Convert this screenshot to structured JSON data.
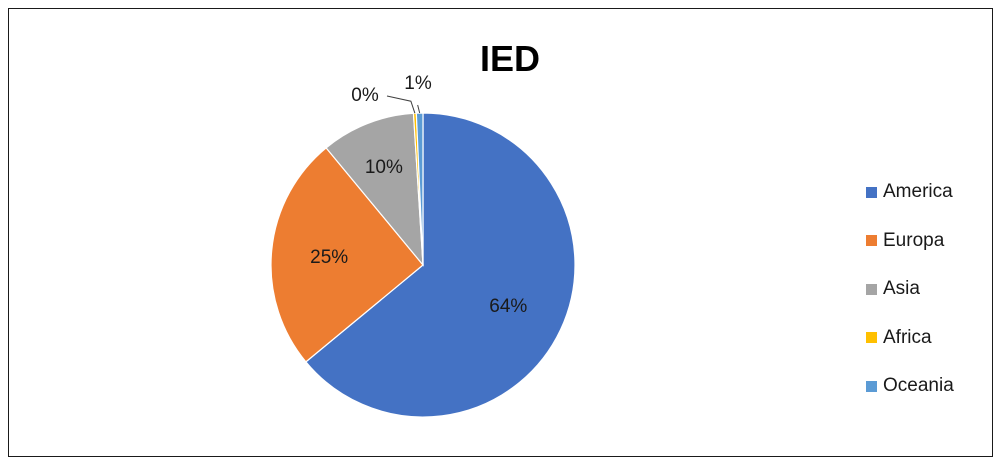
{
  "chart_data": {
    "type": "pie",
    "title": "IED",
    "legend_position": "right",
    "slices": [
      {
        "name": "America",
        "value": 64,
        "label": "64%",
        "color": "#4472C4"
      },
      {
        "name": "Europa",
        "value": 25,
        "label": "25%",
        "color": "#ED7D31"
      },
      {
        "name": "Asia",
        "value": 10,
        "label": "10%",
        "color": "#A5A5A5"
      },
      {
        "name": "Africa",
        "value": 0.3,
        "label": "0%",
        "color": "#FFC000"
      },
      {
        "name": "Oceania",
        "value": 0.7,
        "label": "1%",
        "color": "#5B9BD5"
      }
    ]
  }
}
